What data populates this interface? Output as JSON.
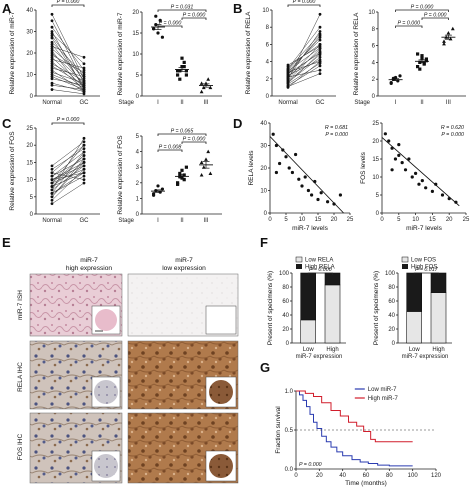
{
  "panel_letters": [
    "A",
    "B",
    "C",
    "D",
    "E",
    "F",
    "G"
  ],
  "tick_groups": [
    "Normal",
    "GC"
  ],
  "stage_label": "Stage",
  "stages": [
    "I",
    "II",
    "III"
  ],
  "chart_data": [
    {
      "id": "A-paired",
      "type": "scatter",
      "ylabel": "Relative expression of miR-7",
      "ylim": [
        0,
        40
      ],
      "yticks": [
        "0",
        "10",
        "20",
        "30",
        "40"
      ],
      "categories": [
        "Normal",
        "GC"
      ],
      "pvalues": [
        "P = 0.000"
      ],
      "series": [
        {
          "values": [
            [
              38,
              8
            ],
            [
              35,
              6
            ],
            [
              32,
              12
            ],
            [
              30,
              3
            ],
            [
              29,
              15
            ],
            [
              28,
              7
            ],
            [
              27,
              4
            ],
            [
              25,
              10
            ],
            [
              24,
              5
            ],
            [
              23,
              18
            ],
            [
              22,
              9
            ],
            [
              21,
              2
            ],
            [
              20,
              6
            ],
            [
              19,
              11
            ],
            [
              18,
              4
            ],
            [
              17,
              13
            ],
            [
              16,
              3
            ],
            [
              15,
              7
            ],
            [
              14,
              5
            ],
            [
              13,
              9
            ],
            [
              12,
              2
            ],
            [
              11,
              6
            ],
            [
              10,
              4
            ],
            [
              9,
              3
            ],
            [
              8,
              5
            ],
            [
              6,
              2
            ],
            [
              5,
              3
            ],
            [
              3,
              1
            ]
          ]
        }
      ]
    },
    {
      "id": "A-stage",
      "type": "scatter",
      "ylabel": "Relative expression of miR-7",
      "ylim": [
        0,
        20
      ],
      "yticks": [
        "0",
        "5",
        "10",
        "15",
        "20"
      ],
      "categories": [
        "I",
        "II",
        "III"
      ],
      "pvalues": [
        "P = 0.000",
        "P = 0.000",
        "P = 0.031"
      ],
      "series": [
        {
          "name": "I",
          "values": [
            16,
            17,
            15,
            18,
            14,
            16,
            19
          ]
        },
        {
          "name": "II",
          "values": [
            5,
            6,
            7,
            8,
            5,
            6,
            4,
            9,
            7,
            6
          ]
        },
        {
          "name": "III",
          "values": [
            1,
            2,
            3,
            4,
            2,
            3
          ]
        }
      ]
    },
    {
      "id": "B-paired",
      "type": "scatter",
      "ylabel": "Relative expression of RELA",
      "ylim": [
        0,
        10
      ],
      "yticks": [
        "0",
        "2",
        "4",
        "6",
        "8",
        "10"
      ],
      "categories": [
        "Normal",
        "GC"
      ],
      "pvalues": [
        "P = 0.000"
      ],
      "series": [
        {
          "values": [
            [
              1,
              4
            ],
            [
              1.5,
              5
            ],
            [
              2,
              6
            ],
            [
              2.2,
              3
            ],
            [
              2.5,
              7
            ],
            [
              1.8,
              5.5
            ],
            [
              3,
              6.5
            ],
            [
              2.8,
              4
            ],
            [
              1.2,
              3.5
            ],
            [
              3.2,
              8
            ],
            [
              2.6,
              5
            ],
            [
              1.6,
              4.5
            ],
            [
              2.1,
              7.5
            ],
            [
              3.4,
              6
            ],
            [
              1.9,
              9.5
            ],
            [
              2.4,
              4.2
            ],
            [
              1.4,
              3.8
            ],
            [
              3.6,
              5.8
            ],
            [
              2.7,
              6.8
            ],
            [
              1.1,
              2.6
            ],
            [
              2.3,
              5.2
            ],
            [
              3.1,
              7.2
            ],
            [
              1.7,
              4.8
            ],
            [
              2.9,
              5.6
            ]
          ]
        }
      ]
    },
    {
      "id": "B-stage",
      "type": "scatter",
      "ylabel": "Relative expression of RELA",
      "ylim": [
        0,
        10
      ],
      "yticks": [
        "0",
        "2",
        "4",
        "6",
        "8",
        "10"
      ],
      "categories": [
        "I",
        "II",
        "III"
      ],
      "pvalues": [
        "P = 0.000",
        "P = 0.000",
        "P = 0.000"
      ],
      "series": [
        {
          "name": "I",
          "values": [
            1.5,
            2,
            2.2,
            1.8,
            2.4,
            1.6,
            2.1
          ]
        },
        {
          "name": "II",
          "values": [
            3.5,
            4,
            4.5,
            3.8,
            4.2,
            5,
            3.2,
            4.8,
            3.9,
            4.4
          ]
        },
        {
          "name": "III",
          "values": [
            6.5,
            7,
            7.5,
            6.8,
            8,
            6.2
          ]
        }
      ]
    },
    {
      "id": "C-paired",
      "type": "scatter",
      "ylabel": "Relative expression of FOS",
      "ylim": [
        0,
        25
      ],
      "yticks": [
        "0",
        "5",
        "10",
        "15",
        "20",
        "25"
      ],
      "categories": [
        "Normal",
        "GC"
      ],
      "pvalues": [
        "P = 0.000"
      ],
      "series": [
        {
          "values": [
            [
              5,
              15
            ],
            [
              6,
              18
            ],
            [
              8,
              12
            ],
            [
              9,
              20
            ],
            [
              10,
              14
            ],
            [
              7,
              22
            ],
            [
              11,
              16
            ],
            [
              12,
              10
            ],
            [
              4,
              13
            ],
            [
              13,
              19
            ],
            [
              9,
              17
            ],
            [
              6,
              11
            ],
            [
              14,
              21
            ],
            [
              8,
              15
            ],
            [
              10,
              12
            ],
            [
              5,
              16
            ],
            [
              11,
              18
            ],
            [
              7,
              14
            ],
            [
              12,
              20
            ],
            [
              3,
              9
            ],
            [
              9,
              13
            ],
            [
              10,
              15
            ],
            [
              8,
              17
            ],
            [
              6,
              12
            ]
          ]
        }
      ]
    },
    {
      "id": "C-stage",
      "type": "scatter",
      "ylabel": "Relative expression of FOS",
      "ylim": [
        0,
        5
      ],
      "yticks": [
        "0",
        "1",
        "2",
        "3",
        "4",
        "5"
      ],
      "categories": [
        "I",
        "II",
        "III"
      ],
      "pvalues": [
        "P = 0.008",
        "P = 0.000",
        "P = 0.065"
      ],
      "series": [
        {
          "name": "I",
          "values": [
            1.2,
            1.5,
            1.8,
            1.4,
            1.6,
            1.3
          ]
        },
        {
          "name": "II",
          "values": [
            2,
            2.4,
            2.8,
            2.2,
            3,
            1.9,
            2.6,
            2.3,
            2.5
          ]
        },
        {
          "name": "III",
          "values": [
            2.5,
            3,
            3.5,
            4,
            2.6,
            3.3
          ]
        }
      ]
    },
    {
      "id": "D-RELA",
      "type": "scatter",
      "xlabel": "miR-7 levels",
      "ylabel": "RELA levels",
      "xlim": [
        0,
        25
      ],
      "ylim": [
        0,
        40
      ],
      "xticks": [
        "0",
        "5",
        "10",
        "15",
        "20",
        "25"
      ],
      "yticks": [
        "0",
        "10",
        "20",
        "30",
        "40"
      ],
      "annotation": [
        "R = 0.681",
        "P = 0.000"
      ],
      "series": [
        {
          "values": [
            [
              1,
              35
            ],
            [
              2,
              30
            ],
            [
              3,
              22
            ],
            [
              4,
              28
            ],
            [
              5,
              25
            ],
            [
              6,
              20
            ],
            [
              7,
              18
            ],
            [
              8,
              26
            ],
            [
              9,
              15
            ],
            [
              10,
              12
            ],
            [
              11,
              16
            ],
            [
              12,
              10
            ],
            [
              13,
              8
            ],
            [
              14,
              14
            ],
            [
              15,
              6
            ],
            [
              16,
              9
            ],
            [
              18,
              5
            ],
            [
              20,
              4
            ],
            [
              22,
              8
            ],
            [
              2,
              18
            ]
          ]
        }
      ],
      "fit": [
        [
          0,
          34
        ],
        [
          23,
          0
        ]
      ]
    },
    {
      "id": "D-FOS",
      "type": "scatter",
      "xlabel": "miR-7 levels",
      "ylabel": "FOS levels",
      "xlim": [
        0,
        25
      ],
      "ylim": [
        0,
        25
      ],
      "xticks": [
        "0",
        "5",
        "10",
        "15",
        "20",
        "25"
      ],
      "yticks": [
        "0",
        "5",
        "10",
        "15",
        "20",
        "25"
      ],
      "annotation": [
        "R = 0.620",
        "P = 0.000"
      ],
      "series": [
        {
          "values": [
            [
              1,
              22
            ],
            [
              2,
              20
            ],
            [
              3,
              18
            ],
            [
              4,
              15
            ],
            [
              5,
              16
            ],
            [
              6,
              14
            ],
            [
              7,
              12
            ],
            [
              8,
              15
            ],
            [
              9,
              10
            ],
            [
              10,
              11
            ],
            [
              11,
              8
            ],
            [
              12,
              9
            ],
            [
              13,
              7
            ],
            [
              15,
              6
            ],
            [
              16,
              8
            ],
            [
              18,
              5
            ],
            [
              20,
              4
            ],
            [
              22,
              3
            ],
            [
              3,
              12
            ],
            [
              5,
              19
            ]
          ]
        }
      ],
      "fit": [
        [
          0,
          21
        ],
        [
          23,
          2
        ]
      ]
    },
    {
      "id": "F-RELA",
      "type": "bar",
      "stacked": true,
      "ylabel": "Present of specimens (%)",
      "ylim": [
        0,
        100
      ],
      "yticks": [
        "0",
        "20",
        "40",
        "60",
        "80",
        "100"
      ],
      "categories": [
        "Low",
        "High"
      ],
      "xlabel": "miR-7 expression",
      "series": [
        {
          "name": "Low RELA",
          "values": [
            33,
            83
          ]
        },
        {
          "name": "High RELA",
          "values": [
            67,
            17
          ]
        }
      ],
      "pvalues": [
        "P = 0.000"
      ]
    },
    {
      "id": "F-FOS",
      "type": "bar",
      "stacked": true,
      "ylabel": "Present of specimens (%)",
      "ylim": [
        0,
        100
      ],
      "yticks": [
        "0",
        "20",
        "40",
        "60",
        "80",
        "100"
      ],
      "categories": [
        "Low",
        "High"
      ],
      "xlabel": "miR-7 expression",
      "series": [
        {
          "name": "Low FOS",
          "values": [
            45,
            72
          ]
        },
        {
          "name": "High FOS",
          "values": [
            55,
            28
          ]
        }
      ],
      "pvalues": [
        "P = 0.017"
      ]
    },
    {
      "id": "G",
      "type": "line",
      "xlabel": "Time (months)",
      "ylabel": "Fraction survival",
      "xlim": [
        0,
        120
      ],
      "ylim": [
        0,
        1
      ],
      "xticks": [
        "0",
        "20",
        "40",
        "60",
        "80",
        "100",
        "120"
      ],
      "yticks": [
        "0.0",
        "0.5",
        "1.0"
      ],
      "pvalues": [
        "P = 0.000"
      ],
      "series": [
        {
          "name": "Low miR-7",
          "values": [
            [
              0,
              1
            ],
            [
              3,
              0.95
            ],
            [
              6,
              0.88
            ],
            [
              9,
              0.8
            ],
            [
              12,
              0.7
            ],
            [
              15,
              0.6
            ],
            [
              18,
              0.52
            ],
            [
              22,
              0.42
            ],
            [
              26,
              0.35
            ],
            [
              30,
              0.28
            ],
            [
              35,
              0.22
            ],
            [
              40,
              0.17
            ],
            [
              48,
              0.12
            ],
            [
              55,
              0.09
            ],
            [
              62,
              0.07
            ],
            [
              70,
              0.05
            ],
            [
              80,
              0.04
            ],
            [
              100,
              0.04
            ]
          ]
        },
        {
          "name": "High miR-7",
          "values": [
            [
              0,
              1
            ],
            [
              8,
              0.97
            ],
            [
              15,
              0.93
            ],
            [
              22,
              0.85
            ],
            [
              30,
              0.75
            ],
            [
              38,
              0.68
            ],
            [
              45,
              0.6
            ],
            [
              52,
              0.55
            ],
            [
              58,
              0.48
            ],
            [
              64,
              0.38
            ],
            [
              68,
              0.35
            ],
            [
              100,
              0.35
            ]
          ]
        }
      ]
    }
  ],
  "panel_E": {
    "headers": [
      {
        "line1": "miR-7",
        "line2": "high expression"
      },
      {
        "line1": "miR-7",
        "line2": "low expression"
      }
    ],
    "row_labels": [
      "miR-7 ISH",
      "RELA IHC",
      "FOS IHC"
    ]
  }
}
